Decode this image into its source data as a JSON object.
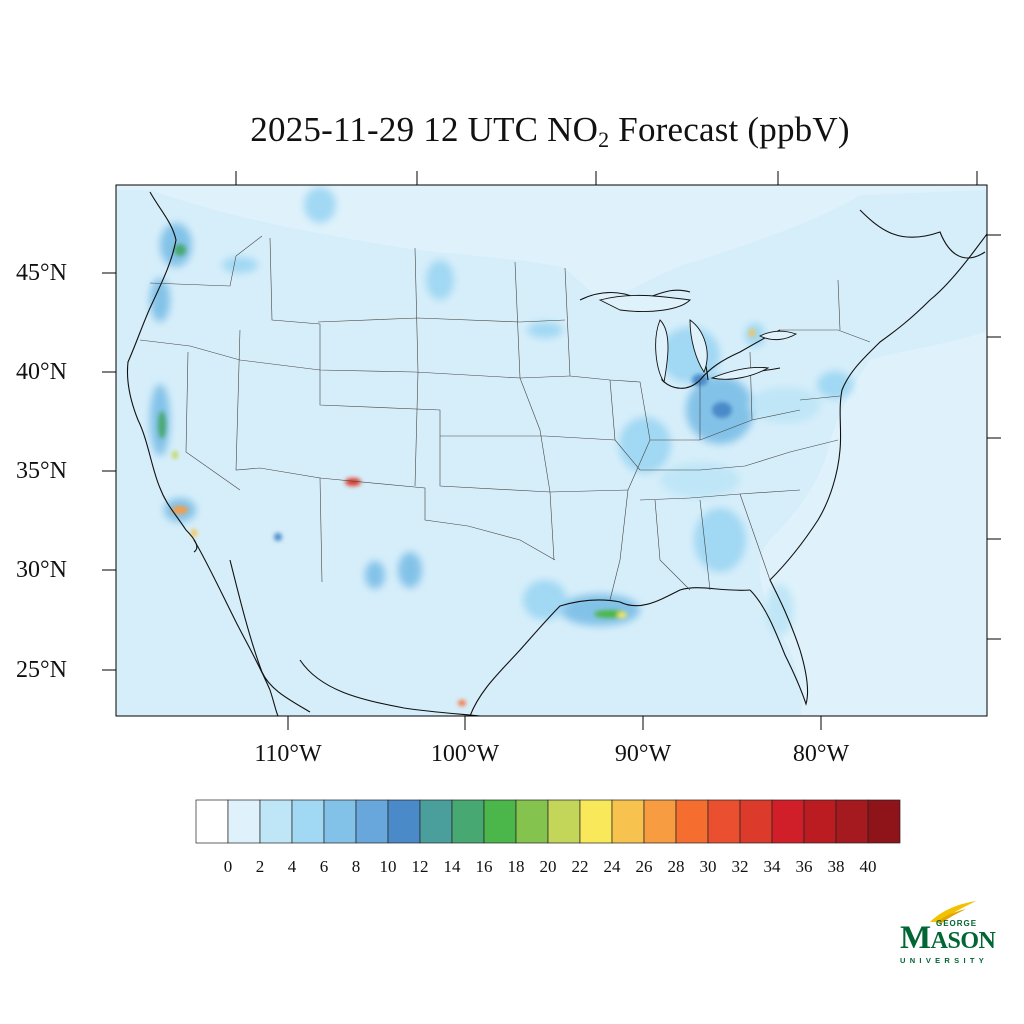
{
  "title": {
    "prefix": "2025-11-29 12 UTC NO",
    "subscript": "2",
    "suffix": " Forecast (ppbV)"
  },
  "axes": {
    "lat_labels": [
      "45°N",
      "40°N",
      "35°N",
      "30°N",
      "25°N"
    ],
    "lat_values": [
      45,
      40,
      35,
      30,
      25
    ],
    "lon_labels": [
      "110°W",
      "100°W",
      "90°W",
      "80°W"
    ],
    "lon_values": [
      -110,
      -100,
      -90,
      -80
    ]
  },
  "map": {
    "projection": "lambert-conformal",
    "extent_lon": [
      -120,
      -70
    ],
    "extent_lat": [
      23,
      50
    ],
    "ocean_color": "#dff2fb",
    "land_color": "#dff2fb",
    "boundary_color": "#333333"
  },
  "colorbar": {
    "labels": [
      "0",
      "2",
      "4",
      "6",
      "8",
      "10",
      "12",
      "14",
      "16",
      "18",
      "20",
      "22",
      "24",
      "26",
      "28",
      "30",
      "32",
      "34",
      "36",
      "38",
      "40"
    ],
    "colors": [
      "#ffffff",
      "#dff2fb",
      "#bfe6f7",
      "#a1d8f3",
      "#83c2e8",
      "#67a7db",
      "#4a8ac9",
      "#4a9e9c",
      "#48a872",
      "#4bb64a",
      "#84c44e",
      "#c4d65a",
      "#f8e85a",
      "#f8c24e",
      "#f89c42",
      "#f56e30",
      "#ea5030",
      "#dc3a2a",
      "#d11f2a",
      "#ba1c22",
      "#a41a1e",
      "#8e141a"
    ]
  },
  "logo": {
    "line1": "GEORGE",
    "line2_big": "M",
    "line2_small": "ASON",
    "line3": "UNIVERSITY"
  }
}
